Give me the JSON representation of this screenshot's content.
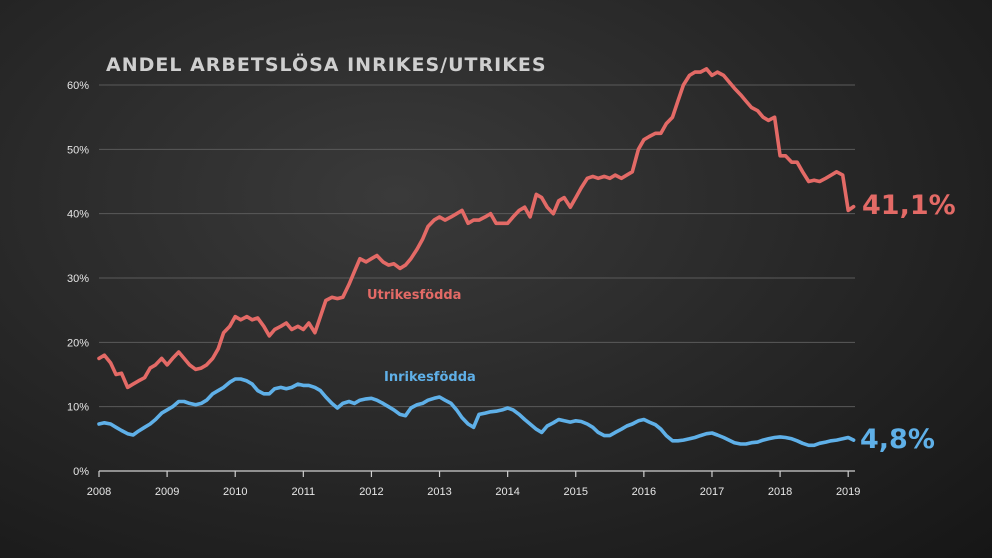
{
  "chart_data": {
    "type": "line",
    "title": "ANDEL ARBETSLÖSA INRIKES/UTRIKES",
    "xlim": [
      2008,
      2019.1
    ],
    "ylim": [
      0,
      60
    ],
    "x_ticks": [
      "2008",
      "2009",
      "2010",
      "2011",
      "2012",
      "2013",
      "2014",
      "2015",
      "2016",
      "2017",
      "2018",
      "2019"
    ],
    "y_ticks": [
      "0%",
      "10%",
      "20%",
      "30%",
      "40%",
      "50%",
      "60%"
    ],
    "grid": true,
    "series": [
      {
        "name": "Utrikesfödda",
        "color": "#e36a66",
        "end_label": "41,1%",
        "points": [
          [
            2008.0,
            17.5
          ],
          [
            2008.08,
            18.0
          ],
          [
            2008.17,
            16.8
          ],
          [
            2008.25,
            15.0
          ],
          [
            2008.33,
            15.2
          ],
          [
            2008.42,
            13.0
          ],
          [
            2008.5,
            13.5
          ],
          [
            2008.58,
            14.0
          ],
          [
            2008.67,
            14.5
          ],
          [
            2008.75,
            16.0
          ],
          [
            2008.83,
            16.5
          ],
          [
            2008.92,
            17.5
          ],
          [
            2009.0,
            16.5
          ],
          [
            2009.08,
            17.5
          ],
          [
            2009.17,
            18.5
          ],
          [
            2009.25,
            17.5
          ],
          [
            2009.33,
            16.5
          ],
          [
            2009.42,
            15.8
          ],
          [
            2009.5,
            16.0
          ],
          [
            2009.58,
            16.5
          ],
          [
            2009.67,
            17.5
          ],
          [
            2009.75,
            19.0
          ],
          [
            2009.83,
            21.5
          ],
          [
            2009.92,
            22.5
          ],
          [
            2010.0,
            24.0
          ],
          [
            2010.08,
            23.5
          ],
          [
            2010.17,
            24.0
          ],
          [
            2010.25,
            23.5
          ],
          [
            2010.33,
            23.8
          ],
          [
            2010.42,
            22.5
          ],
          [
            2010.5,
            21.0
          ],
          [
            2010.58,
            22.0
          ],
          [
            2010.67,
            22.5
          ],
          [
            2010.75,
            23.0
          ],
          [
            2010.83,
            22.0
          ],
          [
            2010.92,
            22.5
          ],
          [
            2011.0,
            22.0
          ],
          [
            2011.08,
            23.0
          ],
          [
            2011.17,
            21.5
          ],
          [
            2011.25,
            24.0
          ],
          [
            2011.33,
            26.5
          ],
          [
            2011.42,
            27.0
          ],
          [
            2011.5,
            26.8
          ],
          [
            2011.58,
            27.0
          ],
          [
            2011.67,
            29.0
          ],
          [
            2011.75,
            31.0
          ],
          [
            2011.83,
            33.0
          ],
          [
            2011.92,
            32.5
          ],
          [
            2012.0,
            33.0
          ],
          [
            2012.08,
            33.5
          ],
          [
            2012.17,
            32.5
          ],
          [
            2012.25,
            32.0
          ],
          [
            2012.33,
            32.2
          ],
          [
            2012.42,
            31.5
          ],
          [
            2012.5,
            32.0
          ],
          [
            2012.58,
            33.0
          ],
          [
            2012.67,
            34.5
          ],
          [
            2012.75,
            36.0
          ],
          [
            2012.83,
            38.0
          ],
          [
            2012.92,
            39.0
          ],
          [
            2013.0,
            39.5
          ],
          [
            2013.08,
            39.0
          ],
          [
            2013.17,
            39.5
          ],
          [
            2013.25,
            40.0
          ],
          [
            2013.33,
            40.5
          ],
          [
            2013.42,
            38.5
          ],
          [
            2013.5,
            39.0
          ],
          [
            2013.58,
            39.0
          ],
          [
            2013.67,
            39.5
          ],
          [
            2013.75,
            40.0
          ],
          [
            2013.83,
            38.5
          ],
          [
            2013.92,
            38.5
          ],
          [
            2014.0,
            38.5
          ],
          [
            2014.08,
            39.5
          ],
          [
            2014.17,
            40.5
          ],
          [
            2014.25,
            41.0
          ],
          [
            2014.33,
            39.5
          ],
          [
            2014.42,
            43.0
          ],
          [
            2014.5,
            42.5
          ],
          [
            2014.58,
            41.0
          ],
          [
            2014.67,
            40.0
          ],
          [
            2014.75,
            42.0
          ],
          [
            2014.83,
            42.5
          ],
          [
            2014.92,
            41.0
          ],
          [
            2015.0,
            42.5
          ],
          [
            2015.08,
            44.0
          ],
          [
            2015.17,
            45.5
          ],
          [
            2015.25,
            45.8
          ],
          [
            2015.33,
            45.5
          ],
          [
            2015.42,
            45.8
          ],
          [
            2015.5,
            45.5
          ],
          [
            2015.58,
            46.0
          ],
          [
            2015.67,
            45.5
          ],
          [
            2015.75,
            46.0
          ],
          [
            2015.83,
            46.5
          ],
          [
            2015.92,
            50.0
          ],
          [
            2016.0,
            51.5
          ],
          [
            2016.08,
            52.0
          ],
          [
            2016.17,
            52.5
          ],
          [
            2016.25,
            52.5
          ],
          [
            2016.33,
            54.0
          ],
          [
            2016.42,
            55.0
          ],
          [
            2016.5,
            57.5
          ],
          [
            2016.58,
            60.0
          ],
          [
            2016.67,
            61.5
          ],
          [
            2016.75,
            62.0
          ],
          [
            2016.83,
            62.0
          ],
          [
            2016.92,
            62.5
          ],
          [
            2017.0,
            61.5
          ],
          [
            2017.08,
            62.0
          ],
          [
            2017.17,
            61.5
          ],
          [
            2017.25,
            60.5
          ],
          [
            2017.33,
            59.5
          ],
          [
            2017.42,
            58.5
          ],
          [
            2017.5,
            57.5
          ],
          [
            2017.58,
            56.5
          ],
          [
            2017.67,
            56.0
          ],
          [
            2017.75,
            55.0
          ],
          [
            2017.83,
            54.5
          ],
          [
            2017.92,
            55.0
          ],
          [
            2018.0,
            49.0
          ],
          [
            2018.08,
            49.0
          ],
          [
            2018.17,
            48.0
          ],
          [
            2018.25,
            48.0
          ],
          [
            2018.33,
            46.5
          ],
          [
            2018.42,
            45.0
          ],
          [
            2018.5,
            45.2
          ],
          [
            2018.58,
            45.0
          ],
          [
            2018.67,
            45.5
          ],
          [
            2018.75,
            46.0
          ],
          [
            2018.83,
            46.5
          ],
          [
            2018.92,
            46.0
          ],
          [
            2019.0,
            40.5
          ],
          [
            2019.08,
            41.1
          ]
        ]
      },
      {
        "name": "Inrikesfödda",
        "color": "#5fb0e8",
        "end_label": "4,8%",
        "points": [
          [
            2008.0,
            7.3
          ],
          [
            2008.08,
            7.5
          ],
          [
            2008.17,
            7.3
          ],
          [
            2008.25,
            6.8
          ],
          [
            2008.33,
            6.3
          ],
          [
            2008.42,
            5.8
          ],
          [
            2008.5,
            5.6
          ],
          [
            2008.58,
            6.2
          ],
          [
            2008.67,
            6.8
          ],
          [
            2008.75,
            7.3
          ],
          [
            2008.83,
            8.0
          ],
          [
            2008.92,
            9.0
          ],
          [
            2009.0,
            9.5
          ],
          [
            2009.08,
            10.0
          ],
          [
            2009.17,
            10.8
          ],
          [
            2009.25,
            10.8
          ],
          [
            2009.33,
            10.5
          ],
          [
            2009.42,
            10.3
          ],
          [
            2009.5,
            10.5
          ],
          [
            2009.58,
            11.0
          ],
          [
            2009.67,
            12.0
          ],
          [
            2009.75,
            12.5
          ],
          [
            2009.83,
            13.0
          ],
          [
            2009.92,
            13.8
          ],
          [
            2010.0,
            14.3
          ],
          [
            2010.08,
            14.3
          ],
          [
            2010.17,
            14.0
          ],
          [
            2010.25,
            13.5
          ],
          [
            2010.33,
            12.5
          ],
          [
            2010.42,
            12.0
          ],
          [
            2010.5,
            12.0
          ],
          [
            2010.58,
            12.8
          ],
          [
            2010.67,
            13.0
          ],
          [
            2010.75,
            12.8
          ],
          [
            2010.83,
            13.0
          ],
          [
            2010.92,
            13.5
          ],
          [
            2011.0,
            13.3
          ],
          [
            2011.08,
            13.3
          ],
          [
            2011.17,
            13.0
          ],
          [
            2011.25,
            12.5
          ],
          [
            2011.33,
            11.5
          ],
          [
            2011.42,
            10.5
          ],
          [
            2011.5,
            9.8
          ],
          [
            2011.58,
            10.5
          ],
          [
            2011.67,
            10.8
          ],
          [
            2011.75,
            10.5
          ],
          [
            2011.83,
            11.0
          ],
          [
            2011.92,
            11.2
          ],
          [
            2012.0,
            11.3
          ],
          [
            2012.08,
            11.0
          ],
          [
            2012.17,
            10.5
          ],
          [
            2012.25,
            10.0
          ],
          [
            2012.33,
            9.5
          ],
          [
            2012.42,
            8.8
          ],
          [
            2012.5,
            8.6
          ],
          [
            2012.58,
            9.8
          ],
          [
            2012.67,
            10.3
          ],
          [
            2012.75,
            10.5
          ],
          [
            2012.83,
            11.0
          ],
          [
            2012.92,
            11.3
          ],
          [
            2013.0,
            11.5
          ],
          [
            2013.08,
            11.0
          ],
          [
            2013.17,
            10.5
          ],
          [
            2013.25,
            9.5
          ],
          [
            2013.33,
            8.3
          ],
          [
            2013.42,
            7.3
          ],
          [
            2013.5,
            6.8
          ],
          [
            2013.58,
            8.8
          ],
          [
            2013.67,
            9.0
          ],
          [
            2013.75,
            9.2
          ],
          [
            2013.83,
            9.3
          ],
          [
            2013.92,
            9.5
          ],
          [
            2014.0,
            9.8
          ],
          [
            2014.08,
            9.5
          ],
          [
            2014.17,
            8.8
          ],
          [
            2014.25,
            8.0
          ],
          [
            2014.33,
            7.3
          ],
          [
            2014.42,
            6.5
          ],
          [
            2014.5,
            6.0
          ],
          [
            2014.58,
            7.0
          ],
          [
            2014.67,
            7.5
          ],
          [
            2014.75,
            8.0
          ],
          [
            2014.83,
            7.8
          ],
          [
            2014.92,
            7.6
          ],
          [
            2015.0,
            7.8
          ],
          [
            2015.08,
            7.7
          ],
          [
            2015.17,
            7.3
          ],
          [
            2015.25,
            6.8
          ],
          [
            2015.33,
            6.0
          ],
          [
            2015.42,
            5.5
          ],
          [
            2015.5,
            5.5
          ],
          [
            2015.58,
            6.0
          ],
          [
            2015.67,
            6.5
          ],
          [
            2015.75,
            7.0
          ],
          [
            2015.83,
            7.3
          ],
          [
            2015.92,
            7.8
          ],
          [
            2016.0,
            8.0
          ],
          [
            2016.08,
            7.6
          ],
          [
            2016.17,
            7.2
          ],
          [
            2016.25,
            6.5
          ],
          [
            2016.33,
            5.5
          ],
          [
            2016.42,
            4.7
          ],
          [
            2016.5,
            4.7
          ],
          [
            2016.58,
            4.8
          ],
          [
            2016.67,
            5.0
          ],
          [
            2016.75,
            5.2
          ],
          [
            2016.83,
            5.5
          ],
          [
            2016.92,
            5.8
          ],
          [
            2017.0,
            5.9
          ],
          [
            2017.08,
            5.6
          ],
          [
            2017.17,
            5.2
          ],
          [
            2017.25,
            4.8
          ],
          [
            2017.33,
            4.4
          ],
          [
            2017.42,
            4.2
          ],
          [
            2017.5,
            4.2
          ],
          [
            2017.58,
            4.4
          ],
          [
            2017.67,
            4.5
          ],
          [
            2017.75,
            4.8
          ],
          [
            2017.83,
            5.0
          ],
          [
            2017.92,
            5.2
          ],
          [
            2018.0,
            5.3
          ],
          [
            2018.08,
            5.2
          ],
          [
            2018.17,
            5.0
          ],
          [
            2018.25,
            4.7
          ],
          [
            2018.33,
            4.3
          ],
          [
            2018.42,
            4.0
          ],
          [
            2018.5,
            4.0
          ],
          [
            2018.58,
            4.3
          ],
          [
            2018.67,
            4.5
          ],
          [
            2018.75,
            4.7
          ],
          [
            2018.83,
            4.8
          ],
          [
            2018.92,
            5.0
          ],
          [
            2019.0,
            5.2
          ],
          [
            2019.08,
            4.8
          ]
        ]
      }
    ]
  }
}
